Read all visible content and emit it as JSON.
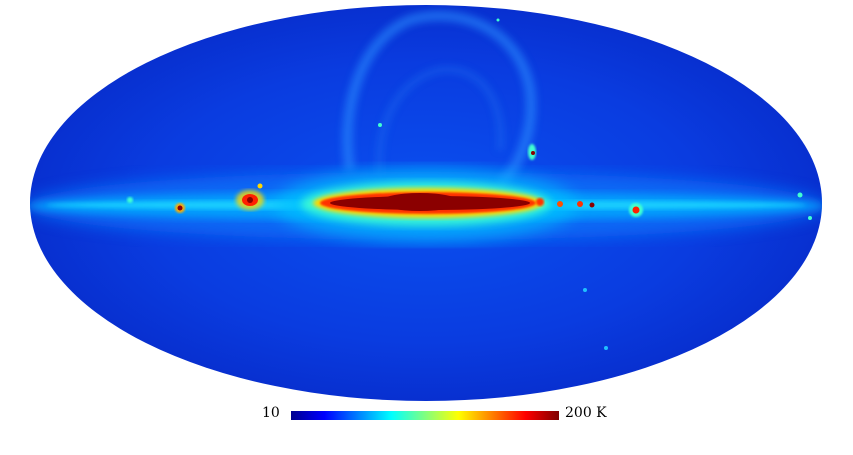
{
  "colorbar": {
    "min_label": "10",
    "max_label": "200 K",
    "colormap": [
      "#00008f",
      "#0000ff",
      "#0080ff",
      "#00ffff",
      "#80ff80",
      "#ffff00",
      "#ff8000",
      "#ff0000",
      "#800000"
    ]
  },
  "map": {
    "projection": "mollweide",
    "background_level_color": "#0a3ce0",
    "plane_color": "#00c8ff",
    "bulge_core_color": "#8b0000",
    "bulge_mid_color": "#ff3000",
    "bulge_outer_color": "#ffd800"
  }
}
